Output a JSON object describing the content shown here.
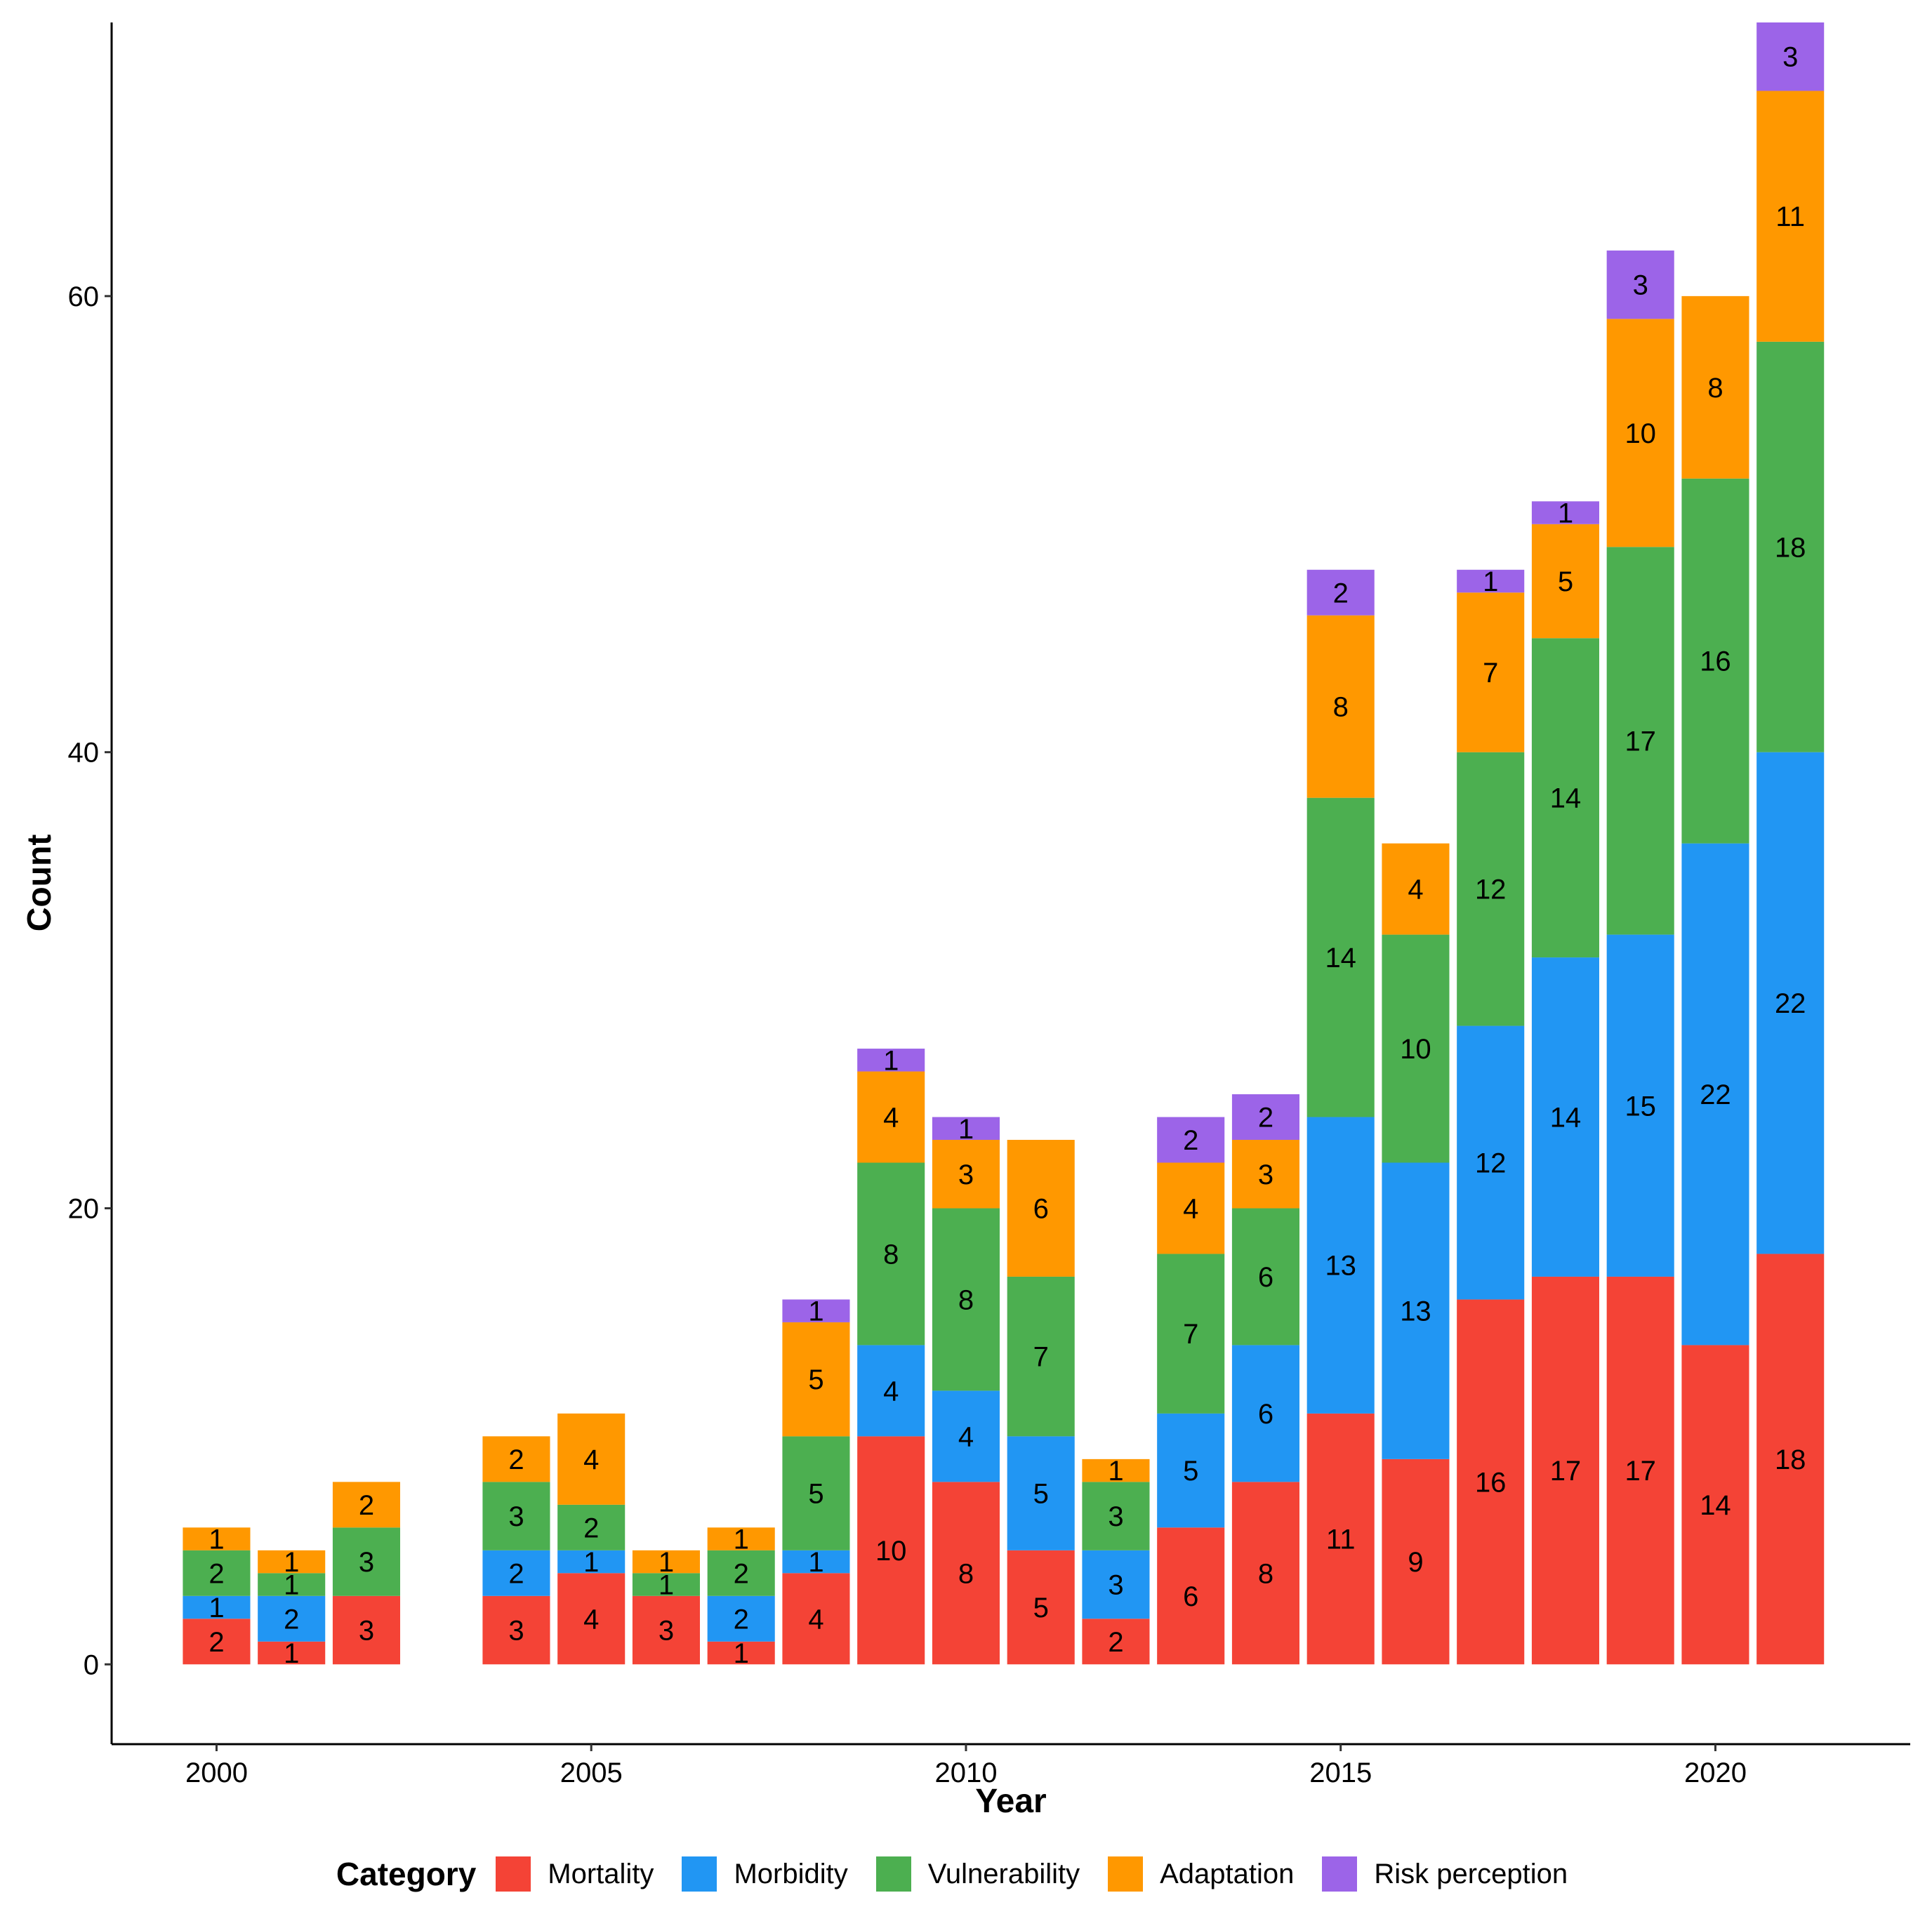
{
  "chart_data": {
    "type": "bar",
    "stacked": true,
    "xlabel": "Year",
    "ylabel": "Count",
    "ylim": [
      -3.5,
      72
    ],
    "xlim": [
      1998.6,
      2022.6
    ],
    "y_ticks": [
      0,
      20,
      40,
      60
    ],
    "x_ticks": [
      2000,
      2005,
      2010,
      2015,
      2020
    ],
    "legend_title": "Category",
    "legend_position": "bottom",
    "categories": [
      2000,
      2001,
      2002,
      2004,
      2005,
      2006,
      2007,
      2008,
      2009,
      2010,
      2011,
      2012,
      2013,
      2014,
      2015,
      2016,
      2017,
      2018,
      2019,
      2020,
      2021
    ],
    "series": [
      {
        "name": "Mortality",
        "color": "#F44336",
        "values": [
          2,
          1,
          3,
          3,
          4,
          3,
          1,
          4,
          10,
          8,
          5,
          2,
          6,
          8,
          11,
          9,
          16,
          17,
          17,
          14,
          18
        ]
      },
      {
        "name": "Morbidity",
        "color": "#2196F3",
        "values": [
          1,
          2,
          0,
          2,
          1,
          0,
          2,
          1,
          4,
          4,
          5,
          3,
          5,
          6,
          13,
          13,
          12,
          14,
          15,
          22,
          22
        ]
      },
      {
        "name": "Vulnerability",
        "color": "#4CAF50",
        "values": [
          2,
          1,
          3,
          3,
          2,
          1,
          2,
          5,
          8,
          8,
          7,
          3,
          7,
          6,
          14,
          10,
          12,
          14,
          17,
          16,
          18
        ]
      },
      {
        "name": "Adaptation",
        "color": "#FF9800",
        "values": [
          1,
          1,
          2,
          2,
          4,
          1,
          1,
          5,
          4,
          3,
          6,
          1,
          4,
          3,
          8,
          4,
          7,
          5,
          10,
          8,
          11
        ]
      },
      {
        "name": "Risk perception",
        "color": "#9C64E8",
        "values": [
          0,
          0,
          0,
          0,
          0,
          0,
          0,
          1,
          1,
          1,
          0,
          0,
          2,
          2,
          2,
          0,
          1,
          1,
          3,
          0,
          3
        ]
      }
    ]
  }
}
